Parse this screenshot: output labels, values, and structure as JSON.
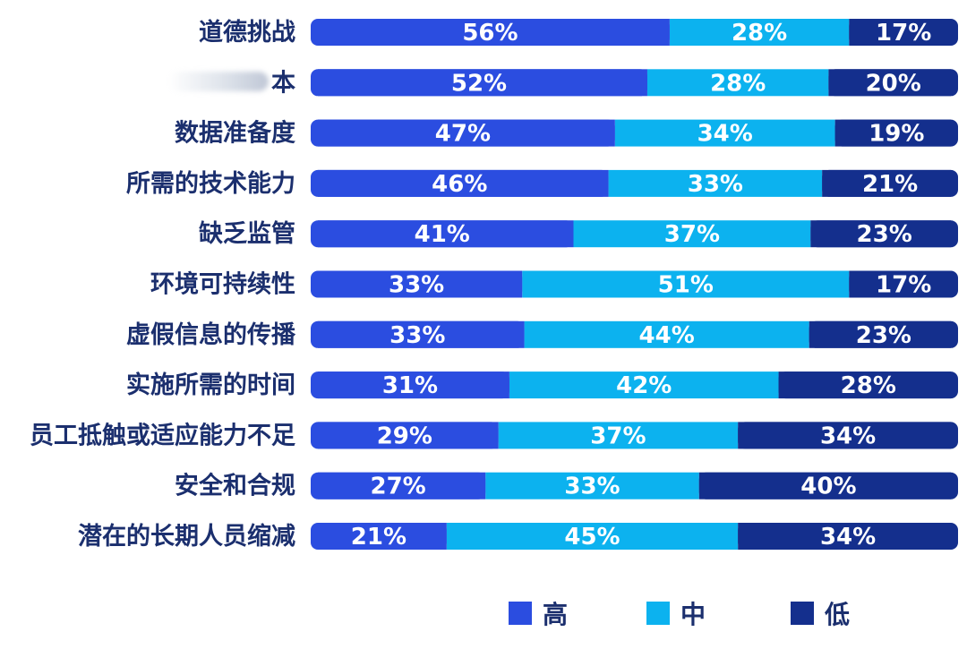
{
  "chart_data": {
    "type": "bar",
    "orientation": "horizontal",
    "stacked": true,
    "normalized": true,
    "categories": [
      "道德挑战",
      "本",
      "数据准备度",
      "所需的技术能力",
      "缺乏监管",
      "环境可持续性",
      "虚假信息的传播",
      "实施所需的时间",
      "员工抵触或适应能力不足",
      "安全和合规",
      "潜在的长期人员缩减"
    ],
    "series": [
      {
        "name": "高",
        "values": [
          56,
          52,
          47,
          46,
          41,
          33,
          33,
          31,
          29,
          27,
          21
        ],
        "color": "#2b4de0"
      },
      {
        "name": "中",
        "values": [
          28,
          28,
          34,
          33,
          37,
          51,
          44,
          42,
          37,
          33,
          45
        ],
        "color": "#0cb2ef"
      },
      {
        "name": "低",
        "values": [
          17,
          20,
          19,
          21,
          23,
          17,
          23,
          28,
          34,
          40,
          34
        ],
        "color": "#142f8d"
      }
    ],
    "value_suffix": "%",
    "legend_position": "bottom-center",
    "grid": false
  }
}
